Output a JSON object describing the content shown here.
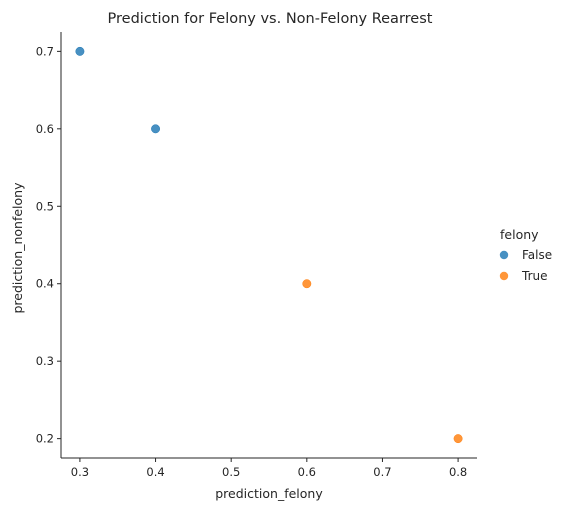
{
  "chart_data": {
    "type": "scatter",
    "title": "Prediction for Felony vs. Non-Felony Rearrest",
    "xlabel": "prediction_felony",
    "ylabel": "prediction_nonfelony",
    "xlim": [
      0.275,
      0.825
    ],
    "ylim": [
      0.175,
      0.725
    ],
    "xticks": [
      0.3,
      0.4,
      0.5,
      0.6,
      0.7,
      0.8
    ],
    "yticks": [
      0.2,
      0.3,
      0.4,
      0.5,
      0.6,
      0.7
    ],
    "xtick_labels": [
      "0.3",
      "0.4",
      "0.5",
      "0.6",
      "0.7",
      "0.8"
    ],
    "ytick_labels": [
      "0.2",
      "0.3",
      "0.4",
      "0.5",
      "0.6",
      "0.7"
    ],
    "grid": false,
    "legend": {
      "title": "felony",
      "placement": "right-outside"
    },
    "series": [
      {
        "name": "False",
        "color": "#1f77b4",
        "points": [
          {
            "x": 0.3,
            "y": 0.7
          },
          {
            "x": 0.4,
            "y": 0.6
          }
        ]
      },
      {
        "name": "True",
        "color": "#ff7f0e",
        "points": [
          {
            "x": 0.6,
            "y": 0.4
          },
          {
            "x": 0.8,
            "y": 0.2
          }
        ]
      }
    ]
  }
}
